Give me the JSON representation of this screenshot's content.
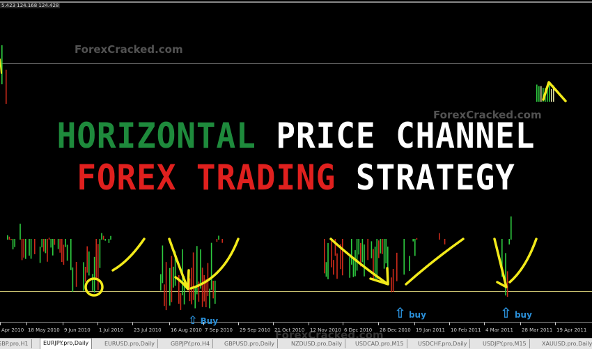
{
  "ohlc_readout": "5.423 124.168 124.428",
  "watermarks": [
    "ForexCracked.com",
    "ForexCracked.com",
    "ForexCracked.com"
  ],
  "title": {
    "line1_green": "HORIZONTAL",
    "line1_white": "PRICE CHANNEL",
    "line2_red": "FOREX TRADING",
    "line2_white": "STRATEGY"
  },
  "colors": {
    "green": "#1e8a3c",
    "red": "#e0201e",
    "white": "#ffffff",
    "annotation": "#f2ea1a",
    "buy": "#2a8fd8",
    "bull_candle": "#2ecc40",
    "bear_candle": "#cc2a1a"
  },
  "signals": [
    {
      "label": "Buy",
      "icon": "arrow-up-outline-icon"
    },
    {
      "label": "buy",
      "icon": "arrow-up-outline-icon"
    },
    {
      "label": "buy",
      "icon": "arrow-up-outline-icon"
    }
  ],
  "time_axis": [
    "Apr 2010",
    "18 May 2010",
    "9 Jun 2010",
    "1 Jul 2010",
    "23 Jul 2010",
    "16 Aug 2010",
    "7 Sep 2010",
    "29 Sep 2010",
    "21 Oct 2010",
    "12 Nov 2010",
    "6 Dec 2010",
    "28 Dec 2010",
    "19 Jan 2011",
    "10 Feb 2011",
    "4 Mar 2011",
    "28 Mar 2011",
    "19 Apr 2011"
  ],
  "tabs": [
    {
      "label": "GBP.pro,H1"
    },
    {
      "label": "EURJPY.pro,Daily",
      "active": true
    },
    {
      "label": "EURUSD.pro,Daily"
    },
    {
      "label": "GBPJPY.pro,H4"
    },
    {
      "label": "GBPUSD.pro,Daily"
    },
    {
      "label": "NZDUSD.pro,Daily"
    },
    {
      "label": "USDCAD.pro,M15"
    },
    {
      "label": "USDCHF.pro,Daily"
    },
    {
      "label": "USDJPY.pro,M15"
    },
    {
      "label": "XAUUSD.pro,Daily"
    }
  ]
}
